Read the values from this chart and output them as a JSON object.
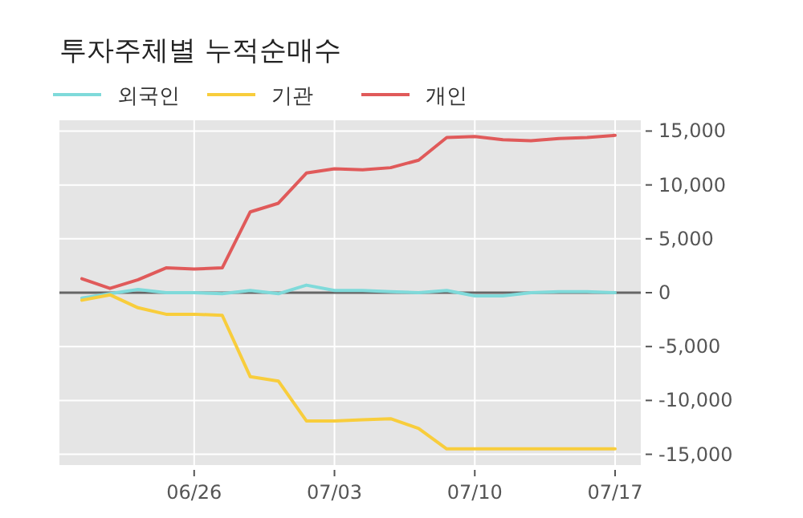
{
  "chart_data": {
    "type": "line",
    "title": "투자주체별 누적순매수",
    "categories": [
      null,
      null,
      null,
      null,
      "06/26",
      null,
      null,
      null,
      null,
      "07/03",
      null,
      null,
      null,
      null,
      "07/10",
      null,
      null,
      null,
      null,
      "07/17"
    ],
    "series": [
      {
        "name": "외국인",
        "color": "#7fdada",
        "values": [
          -500,
          -100,
          300,
          0,
          0,
          -100,
          200,
          -100,
          700,
          200,
          200,
          100,
          0,
          200,
          -300,
          -300,
          0,
          100,
          100,
          0
        ]
      },
      {
        "name": "기관",
        "color": "#f8cd3c",
        "values": [
          -700,
          -200,
          -1400,
          -2000,
          -2000,
          -2100,
          -7800,
          -8200,
          -11900,
          -11900,
          -11800,
          -11700,
          -12600,
          -14500,
          -14500,
          -14500,
          -14500,
          -14500,
          -14500,
          -14500
        ]
      },
      {
        "name": "개인",
        "color": "#e05a5a",
        "values": [
          1300,
          400,
          1200,
          2300,
          2200,
          2300,
          7500,
          8300,
          11100,
          11500,
          11400,
          11600,
          12300,
          14400,
          14500,
          14200,
          14100,
          14300,
          14400,
          14600
        ]
      }
    ],
    "ylim": [
      -16000,
      16000
    ],
    "yticks": [
      {
        "value": -15000,
        "label": "-15,000"
      },
      {
        "value": -10000,
        "label": "-10,000"
      },
      {
        "value": -5000,
        "label": "-5,000"
      },
      0,
      {
        "value": 5000,
        "label": "5,000"
      },
      {
        "value": 10000,
        "label": "10,000"
      },
      {
        "value": 15000,
        "label": "15,000"
      }
    ],
    "ref_lines": [
      {
        "axis": "y",
        "value": 0,
        "color": "#666666"
      }
    ],
    "grid": true,
    "legend": "top left",
    "line_style": "solid",
    "marker": "none"
  }
}
